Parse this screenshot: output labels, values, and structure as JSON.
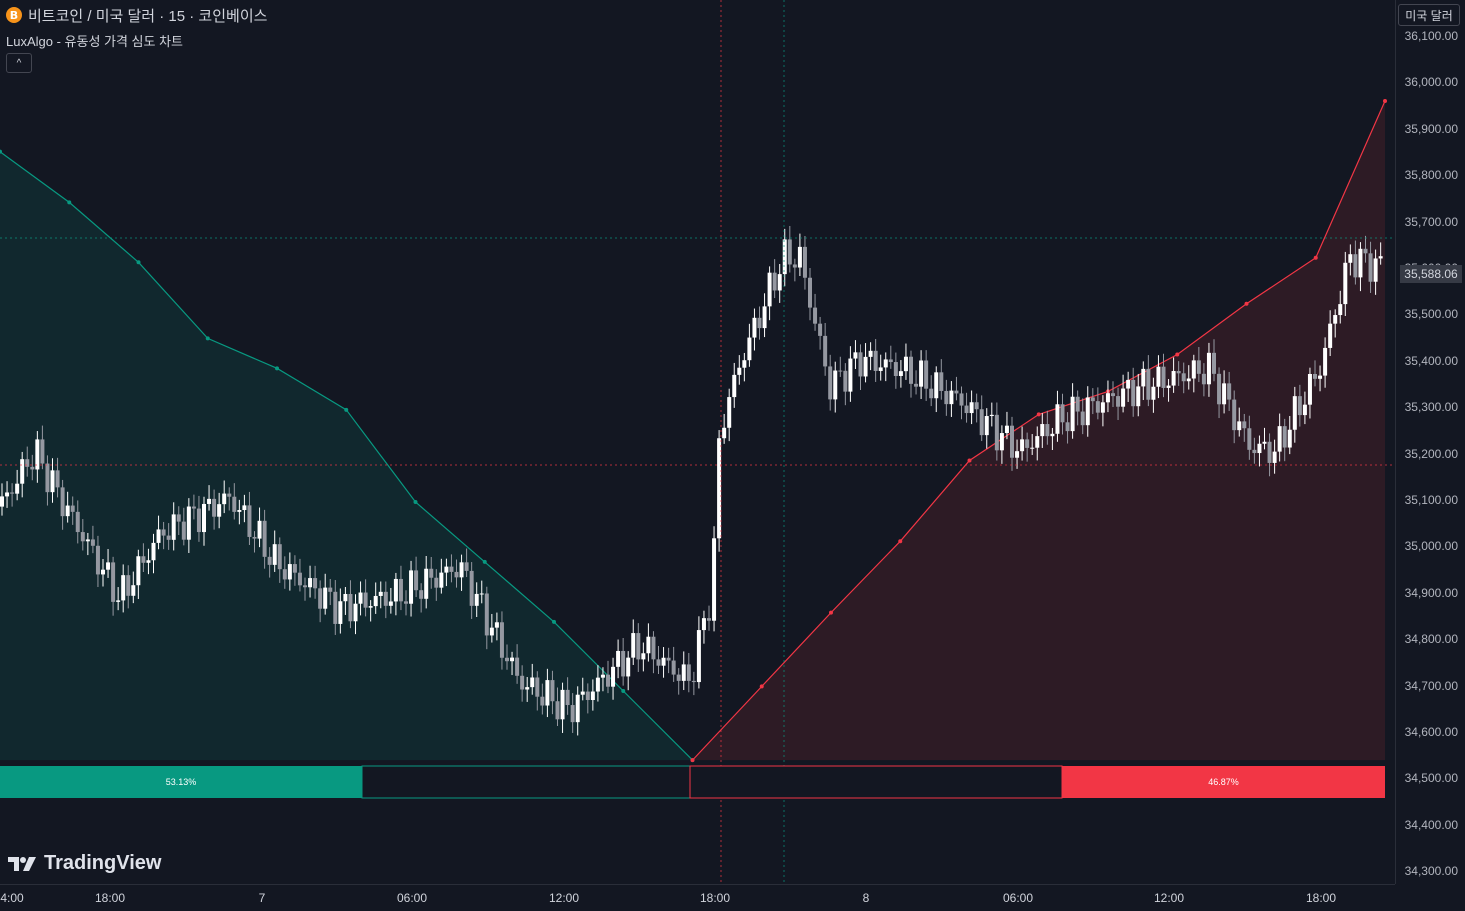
{
  "header": {
    "coin_icon": "B",
    "symbol_title": "비트코인 / 미국 달러 · 15 · 코인베이스",
    "indicator_title": "LuxAlgo - 유동성 가격 심도 차트",
    "collapse_icon": "^"
  },
  "currency_button": "미국 달러",
  "price_axis": {
    "ticks": [
      "36,100.00",
      "36,000.00",
      "35,900.00",
      "35,800.00",
      "35,700.00",
      "35,600.00",
      "35,500.00",
      "35,400.00",
      "35,300.00",
      "35,200.00",
      "35,100.00",
      "35,000.00",
      "34,900.00",
      "34,800.00",
      "34,700.00",
      "34,600.00",
      "34,500.00",
      "34,400.00",
      "34,300.00"
    ],
    "last_price_label": "35,588.06"
  },
  "time_axis": {
    "ticks": [
      "4:00",
      "18:00",
      "7",
      "06:00",
      "12:00",
      "18:00",
      "8",
      "06:00",
      "12:00",
      "18:00"
    ]
  },
  "depth_bar": {
    "bid_pct": "53.13%",
    "ask_pct": "46.87%"
  },
  "colors": {
    "background": "#131722",
    "bid": "#089981",
    "ask": "#f23645",
    "candle_up": "#ffffff",
    "candle_down": "#9598a1"
  },
  "watermark": "TradingView",
  "chart_data": {
    "type": "line",
    "title": "",
    "ylabel": "",
    "xlabel": "",
    "ylim": [
      34270,
      36140
    ],
    "grid": false,
    "series": [
      {
        "name": "",
        "x": [
          0,
          0.05,
          0.1,
          0.15,
          0.2,
          0.25,
          0.3,
          0.35,
          0.4,
          0.45,
          0.5
        ],
        "values": [
          35850,
          35740,
          35610,
          35445,
          35380,
          35290,
          35090,
          34960,
          34830,
          34680,
          34530
        ]
      },
      {
        "name": "",
        "x": [
          0.5,
          0.55,
          0.6,
          0.65,
          0.7,
          0.75,
          0.8,
          0.85,
          0.9,
          0.95,
          1.0
        ],
        "values": [
          34530,
          34690,
          34850,
          35005,
          35180,
          35280,
          35330,
          35410,
          35520,
          35620,
          35960
        ]
      }
    ]
  }
}
